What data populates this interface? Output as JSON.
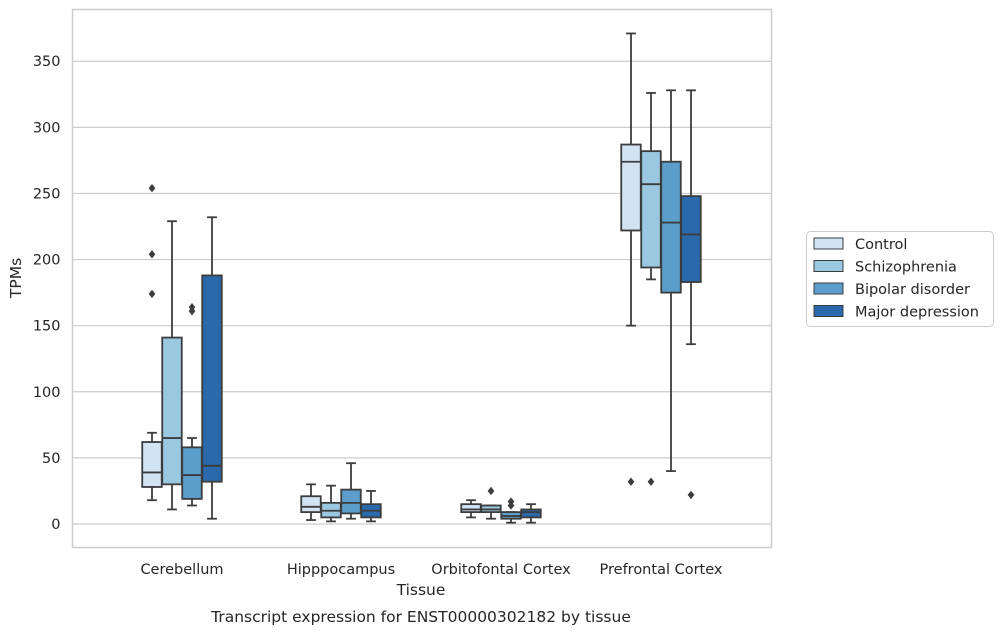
{
  "chart_data": {
    "type": "boxplot",
    "title": "Transcript expression for ENST00000302182 by tissue",
    "xlabel": "Tissue",
    "ylabel": "TPMs",
    "ylim": [
      -18,
      390
    ],
    "yticks": [
      0,
      50,
      100,
      150,
      200,
      250,
      300,
      350
    ],
    "grid": "horizontal",
    "legend_position": "right",
    "categories": [
      "Cerebellum",
      "Hipppocampus",
      "Orbitofontal Cortex",
      "Prefrontal Cortex"
    ],
    "series": [
      {
        "name": "Control",
        "color": "#d2e3f3",
        "boxes": [
          {
            "whislo": 18,
            "q1": 28,
            "med": 39,
            "q3": 62,
            "whishi": 69,
            "fliers": [
              174,
              204,
              254
            ]
          },
          {
            "whislo": 3,
            "q1": 9,
            "med": 13,
            "q3": 21,
            "whishi": 30,
            "fliers": []
          },
          {
            "whislo": 5,
            "q1": 9,
            "med": 11,
            "q3": 15,
            "whishi": 18,
            "fliers": []
          },
          {
            "whislo": 150,
            "q1": 222,
            "med": 274,
            "q3": 287,
            "whishi": 371,
            "fliers": [
              32
            ]
          }
        ]
      },
      {
        "name": "Schizophrenia",
        "color": "#9ac8e0",
        "boxes": [
          {
            "whislo": 11,
            "q1": 30,
            "med": 65,
            "q3": 141,
            "whishi": 229,
            "fliers": []
          },
          {
            "whislo": 2,
            "q1": 5,
            "med": 10,
            "q3": 16,
            "whishi": 29,
            "fliers": []
          },
          {
            "whislo": 4,
            "q1": 9,
            "med": 11,
            "q3": 14,
            "whishi": 14,
            "fliers": [
              25
            ]
          },
          {
            "whislo": 185,
            "q1": 194,
            "med": 257,
            "q3": 282,
            "whishi": 326,
            "fliers": [
              32
            ]
          }
        ]
      },
      {
        "name": "Bipolar disorder",
        "color": "#5b9ecc",
        "boxes": [
          {
            "whislo": 14,
            "q1": 19,
            "med": 37,
            "q3": 58,
            "whishi": 65,
            "fliers": [
              161,
              164
            ]
          },
          {
            "whislo": 4,
            "q1": 8,
            "med": 16,
            "q3": 26,
            "whishi": 46,
            "fliers": []
          },
          {
            "whislo": 1,
            "q1": 4,
            "med": 6,
            "q3": 9,
            "whishi": 9,
            "fliers": [
              14,
              17
            ]
          },
          {
            "whislo": 40,
            "q1": 175,
            "med": 228,
            "q3": 274,
            "whishi": 328,
            "fliers": []
          }
        ]
      },
      {
        "name": "Major depression",
        "color": "#2a69ac",
        "boxes": [
          {
            "whislo": 4,
            "q1": 32,
            "med": 44,
            "q3": 188,
            "whishi": 232,
            "fliers": []
          },
          {
            "whislo": 2,
            "q1": 5,
            "med": 10,
            "q3": 15,
            "whishi": 25,
            "fliers": []
          },
          {
            "whislo": 1,
            "q1": 5,
            "med": 9,
            "q3": 11,
            "whishi": 15,
            "fliers": []
          },
          {
            "whislo": 136,
            "q1": 183,
            "med": 219,
            "q3": 248,
            "whishi": 328,
            "fliers": [
              22
            ]
          }
        ]
      }
    ]
  }
}
